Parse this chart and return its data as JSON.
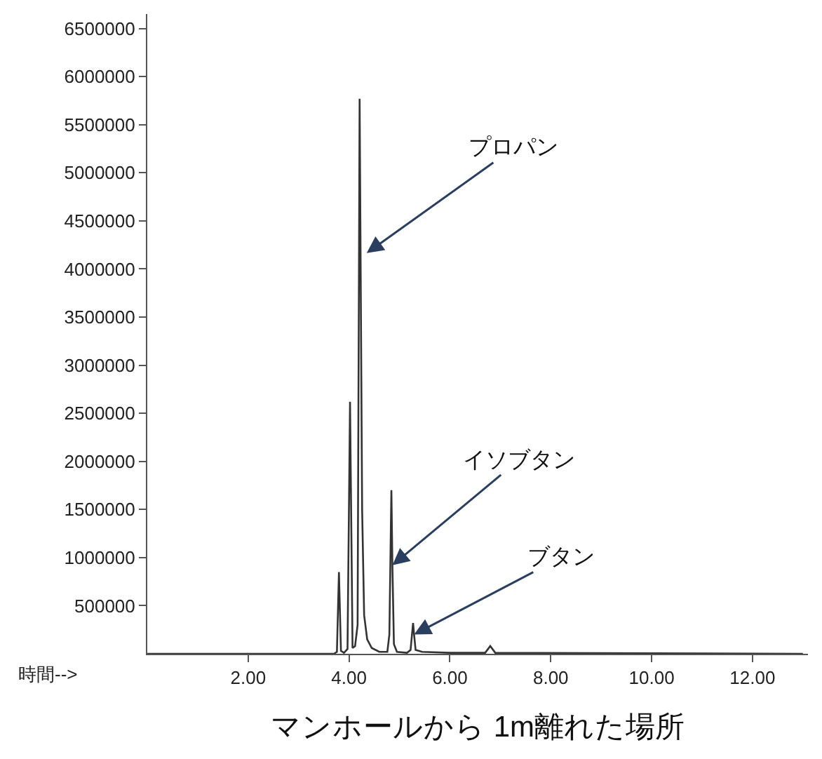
{
  "chart_data": {
    "type": "line",
    "xlabel": "時間-->",
    "x": [
      0,
      3.7,
      3.76,
      3.8,
      3.84,
      3.9,
      3.97,
      4.02,
      4.07,
      4.12,
      4.17,
      4.21,
      4.26,
      4.3,
      4.36,
      4.45,
      4.6,
      4.76,
      4.8,
      4.84,
      4.86,
      4.89,
      4.95,
      5.15,
      5.22,
      5.27,
      5.29,
      5.32,
      5.45,
      6.0,
      6.7,
      6.8,
      6.9,
      13.0
    ],
    "series": [
      {
        "color": "#333333",
        "values": [
          0,
          0,
          20000,
          850000,
          30000,
          10000,
          50000,
          2620000,
          60000,
          80000,
          300000,
          5770000,
          1500000,
          400000,
          150000,
          60000,
          20000,
          20000,
          200000,
          1700000,
          920000,
          100000,
          20000,
          10000,
          40000,
          320000,
          200000,
          40000,
          20000,
          10000,
          10000,
          80000,
          10000,
          0
        ]
      }
    ],
    "xlim": [
      0,
      13.1
    ],
    "ylim": [
      0,
      6650000
    ],
    "xticks": [
      {
        "value": 2,
        "label": "2.00"
      },
      {
        "value": 4,
        "label": "4.00"
      },
      {
        "value": 6,
        "label": "6.00"
      },
      {
        "value": 8,
        "label": "8.00"
      },
      {
        "value": 10,
        "label": "10.00"
      },
      {
        "value": 12,
        "label": "12.00"
      }
    ],
    "yticks": [
      500000,
      1000000,
      1500000,
      2000000,
      2500000,
      3000000,
      3500000,
      4000000,
      4500000,
      5000000,
      5500000,
      6000000,
      6500000
    ],
    "marker": "none",
    "line_style": "solid",
    "annotations": [
      {
        "text": "プロパン",
        "x": 4.35,
        "y": 4165000
      },
      {
        "text": "イソブタン",
        "x": 4.86,
        "y": 920000
      },
      {
        "text": "ブタン",
        "x": 5.29,
        "y": 200000
      },
      "マンホールから 1m離れた場所"
    ]
  }
}
